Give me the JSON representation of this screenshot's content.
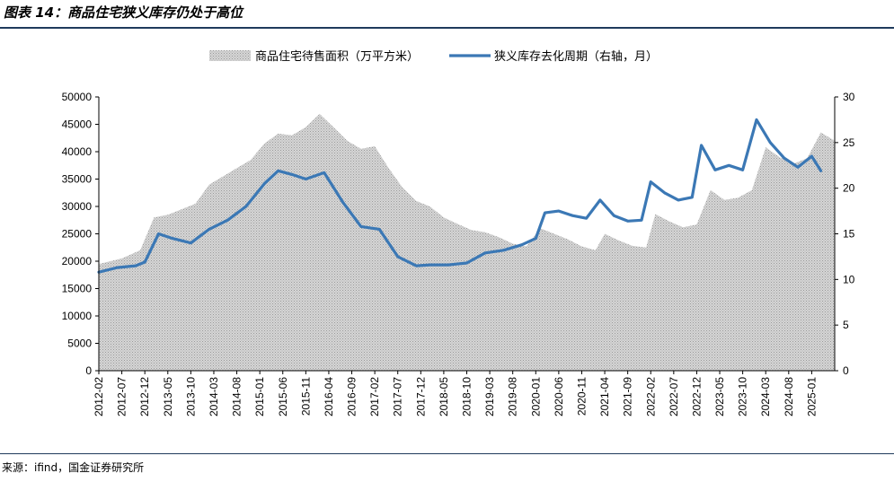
{
  "header": {
    "title": "图表 14：商品住宅狭义库存仍处于高位"
  },
  "footer": {
    "source": "来源：ifind，国金证券研究所"
  },
  "chart_data": {
    "type": "area+line",
    "title": "图表 14：商品住宅狭义库存仍处于高位",
    "legend": [
      "商品住宅待售面积（万平方米）",
      "狭义库存去化周期（右轴，月）"
    ],
    "legend_position": "top",
    "y_left": {
      "min": 0,
      "max": 50000,
      "ticks": [
        0,
        5000,
        10000,
        15000,
        20000,
        25000,
        30000,
        35000,
        40000,
        45000,
        50000
      ]
    },
    "y_right": {
      "min": 0,
      "max": 30,
      "ticks": [
        0,
        5,
        10,
        15,
        20,
        25,
        30
      ]
    },
    "x_ticks": [
      "2012-02",
      "2012-07",
      "2012-12",
      "2013-05",
      "2013-10",
      "2014-03",
      "2014-08",
      "2015-01",
      "2015-06",
      "2015-11",
      "2016-04",
      "2016-09",
      "2017-02",
      "2017-07",
      "2017-12",
      "2018-05",
      "2018-10",
      "2019-03",
      "2019-08",
      "2020-01",
      "2020-06",
      "2020-11",
      "2021-04",
      "2021-09",
      "2022-02",
      "2022-07",
      "2022-12",
      "2023-05",
      "2023-10",
      "2024-03",
      "2024-08",
      "2025-01"
    ],
    "grid": false,
    "series": [
      {
        "name": "商品住宅待售面积（万平方米）",
        "axis": "left",
        "kind": "area",
        "color": "#bfbfbf",
        "points": [
          [
            "2012-02",
            19500
          ],
          [
            "2012-07",
            20500
          ],
          [
            "2012-11",
            22000
          ],
          [
            "2013-02",
            28000
          ],
          [
            "2013-05",
            28500
          ],
          [
            "2013-08",
            29500
          ],
          [
            "2013-11",
            30500
          ],
          [
            "2014-02",
            34000
          ],
          [
            "2014-05",
            35500
          ],
          [
            "2014-08",
            37000
          ],
          [
            "2014-11",
            38500
          ],
          [
            "2015-02",
            41500
          ],
          [
            "2015-05",
            43300
          ],
          [
            "2015-08",
            43000
          ],
          [
            "2015-11",
            44500
          ],
          [
            "2016-02",
            46900
          ],
          [
            "2016-05",
            44500
          ],
          [
            "2016-08",
            42000
          ],
          [
            "2016-11",
            40500
          ],
          [
            "2017-02",
            41000
          ],
          [
            "2017-05",
            37000
          ],
          [
            "2017-08",
            33500
          ],
          [
            "2017-11",
            31000
          ],
          [
            "2018-02",
            30000
          ],
          [
            "2018-05",
            28000
          ],
          [
            "2018-08",
            26800
          ],
          [
            "2018-11",
            25700
          ],
          [
            "2019-02",
            25300
          ],
          [
            "2019-05",
            24400
          ],
          [
            "2019-08",
            23200
          ],
          [
            "2019-11",
            22700
          ],
          [
            "2020-02",
            26000
          ],
          [
            "2020-05",
            25000
          ],
          [
            "2020-08",
            24000
          ],
          [
            "2020-11",
            22700
          ],
          [
            "2021-02",
            22000
          ],
          [
            "2021-04",
            25000
          ],
          [
            "2021-07",
            23800
          ],
          [
            "2021-10",
            22800
          ],
          [
            "2022-01",
            22500
          ],
          [
            "2022-03",
            28600
          ],
          [
            "2022-06",
            27300
          ],
          [
            "2022-09",
            26200
          ],
          [
            "2022-12",
            26700
          ],
          [
            "2023-03",
            33000
          ],
          [
            "2023-06",
            31200
          ],
          [
            "2023-09",
            31600
          ],
          [
            "2023-12",
            33000
          ],
          [
            "2024-03",
            40800
          ],
          [
            "2024-06",
            39000
          ],
          [
            "2024-09",
            37800
          ],
          [
            "2024-12",
            38800
          ],
          [
            "2025-03",
            43500
          ],
          [
            "2025-06",
            42000
          ]
        ]
      },
      {
        "name": "狭义库存去化周期（右轴，月）",
        "axis": "right",
        "kind": "line",
        "color": "#3b78b5",
        "points": [
          [
            "2012-02",
            10.8
          ],
          [
            "2012-06",
            11.3
          ],
          [
            "2012-10",
            11.5
          ],
          [
            "2012-12",
            11.9
          ],
          [
            "2013-03",
            15.0
          ],
          [
            "2013-06",
            14.5
          ],
          [
            "2013-10",
            14.0
          ],
          [
            "2014-02",
            15.5
          ],
          [
            "2014-06",
            16.5
          ],
          [
            "2014-10",
            18.0
          ],
          [
            "2015-02",
            20.5
          ],
          [
            "2015-05",
            21.9
          ],
          [
            "2015-08",
            21.5
          ],
          [
            "2015-11",
            21.0
          ],
          [
            "2016-03",
            21.7
          ],
          [
            "2016-07",
            18.5
          ],
          [
            "2016-11",
            15.8
          ],
          [
            "2017-03",
            15.5
          ],
          [
            "2017-07",
            12.5
          ],
          [
            "2017-11",
            11.5
          ],
          [
            "2018-02",
            11.6
          ],
          [
            "2018-06",
            11.6
          ],
          [
            "2018-10",
            11.8
          ],
          [
            "2019-02",
            12.9
          ],
          [
            "2019-06",
            13.2
          ],
          [
            "2019-10",
            13.8
          ],
          [
            "2020-01",
            14.5
          ],
          [
            "2020-03",
            17.3
          ],
          [
            "2020-06",
            17.5
          ],
          [
            "2020-09",
            17.0
          ],
          [
            "2020-12",
            16.7
          ],
          [
            "2021-03",
            18.7
          ],
          [
            "2021-06",
            17.0
          ],
          [
            "2021-09",
            16.4
          ],
          [
            "2021-12",
            16.5
          ],
          [
            "2022-02",
            20.7
          ],
          [
            "2022-05",
            19.5
          ],
          [
            "2022-08",
            18.7
          ],
          [
            "2022-11",
            19.0
          ],
          [
            "2023-01",
            24.7
          ],
          [
            "2023-04",
            22.0
          ],
          [
            "2023-07",
            22.5
          ],
          [
            "2023-10",
            22.0
          ],
          [
            "2024-01",
            27.5
          ],
          [
            "2024-04",
            25.0
          ],
          [
            "2024-07",
            23.3
          ],
          [
            "2024-10",
            22.3
          ],
          [
            "2025-01",
            23.5
          ],
          [
            "2025-03",
            21.9
          ]
        ]
      }
    ]
  }
}
